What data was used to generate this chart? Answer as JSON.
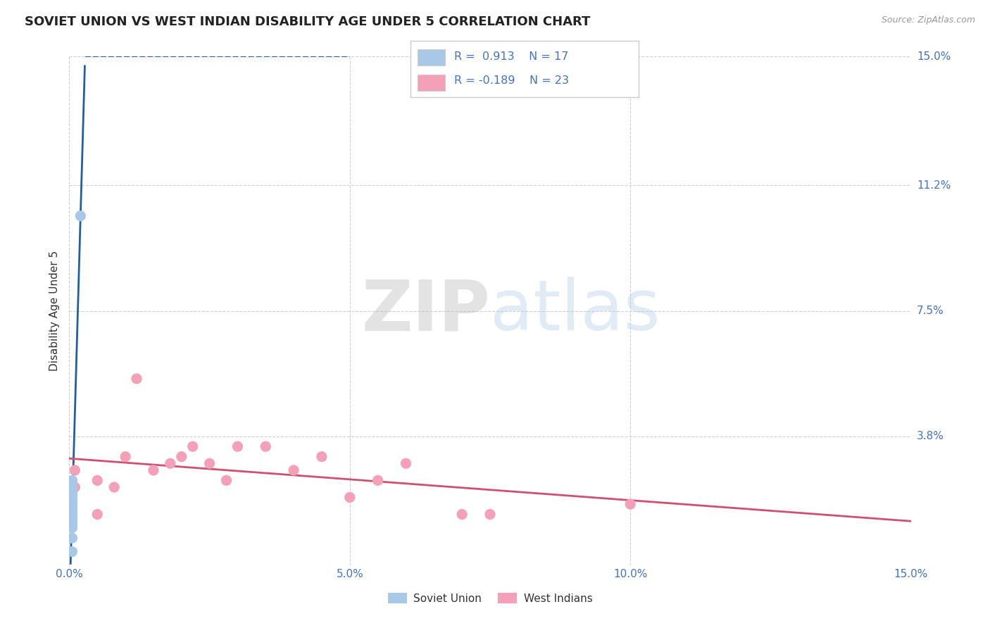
{
  "title": "SOVIET UNION VS WEST INDIAN DISABILITY AGE UNDER 5 CORRELATION CHART",
  "source": "Source: ZipAtlas.com",
  "ylabel": "Disability Age Under 5",
  "x_tick_labels": [
    "0.0%",
    "5.0%",
    "10.0%",
    "15.0%"
  ],
  "x_tick_vals": [
    0.0,
    5.0,
    10.0,
    15.0
  ],
  "y_tick_labels_right": [
    "3.8%",
    "7.5%",
    "11.2%",
    "15.0%"
  ],
  "y_tick_vals_right": [
    3.8,
    7.5,
    11.2,
    15.0
  ],
  "xlim": [
    0.0,
    15.0
  ],
  "ylim": [
    0.0,
    15.0
  ],
  "soviet_color": "#a8c8e8",
  "west_indian_color": "#f4a0b8",
  "soviet_line_color": "#2060a0",
  "west_indian_line_color": "#d05070",
  "background_color": "#ffffff",
  "grid_color": "#d0d0d0",
  "soviet_x": [
    0.2,
    0.05,
    0.05,
    0.05,
    0.05,
    0.05,
    0.05,
    0.05,
    0.05,
    0.05,
    0.05,
    0.05,
    0.05,
    0.05,
    0.05,
    0.05,
    0.05
  ],
  "soviet_y": [
    10.3,
    2.5,
    2.3,
    2.2,
    2.1,
    2.0,
    1.9,
    1.8,
    1.7,
    1.6,
    1.5,
    1.4,
    1.3,
    1.2,
    1.1,
    0.8,
    0.4
  ],
  "west_x": [
    0.1,
    0.1,
    0.8,
    1.0,
    1.2,
    1.5,
    1.8,
    2.0,
    2.2,
    2.5,
    2.8,
    3.0,
    3.5,
    4.0,
    4.5,
    5.0,
    5.5,
    6.0,
    7.0,
    7.5,
    10.0,
    0.5,
    0.5
  ],
  "west_y": [
    2.8,
    2.3,
    2.3,
    3.2,
    5.5,
    2.8,
    3.0,
    3.2,
    3.5,
    3.0,
    2.5,
    3.5,
    3.5,
    2.8,
    3.2,
    2.0,
    2.5,
    3.0,
    1.5,
    1.5,
    1.8,
    2.5,
    1.5
  ],
  "legend_R1": "0.913",
  "legend_N1": "17",
  "legend_R2": "-0.189",
  "legend_N2": "23",
  "title_fontsize": 13,
  "axis_label_fontsize": 11,
  "tick_fontsize": 11
}
